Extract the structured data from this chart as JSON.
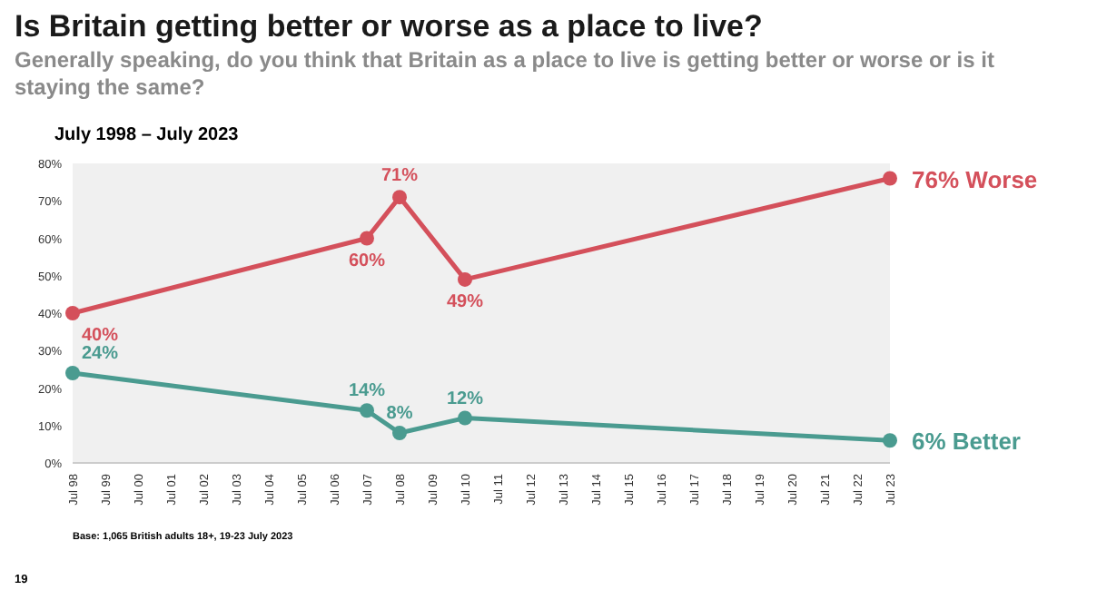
{
  "chart_data": {
    "type": "line",
    "title": "Is Britain getting better or worse as a place to live?",
    "subtitle": "Generally speaking, do you think that Britain as a place to live is getting better or worse or is it staying the same?",
    "categories": [
      "Jul 98",
      "Jul 99",
      "Jul 00",
      "Jul 01",
      "Jul 02",
      "Jul 03",
      "Jul 04",
      "Jul 05",
      "Jul 06",
      "Jul 07",
      "Jul 08",
      "Jul 09",
      "Jul 10",
      "Jul 11",
      "Jul 12",
      "Jul 13",
      "Jul 14",
      "Jul 15",
      "Jul 16",
      "Jul 17",
      "Jul 18",
      "Jul 19",
      "Jul 20",
      "Jul 21",
      "Jul 22",
      "Jul 23"
    ],
    "series": [
      {
        "name": "Worse",
        "color": "#d4505b",
        "values": [
          40,
          null,
          null,
          null,
          null,
          null,
          null,
          null,
          null,
          60,
          71,
          null,
          49,
          null,
          null,
          null,
          null,
          null,
          null,
          null,
          null,
          null,
          null,
          null,
          null,
          76
        ],
        "value_labels": [
          "40%",
          null,
          null,
          null,
          null,
          null,
          null,
          null,
          null,
          "60%",
          "71%",
          null,
          "49%",
          null,
          null,
          null,
          null,
          null,
          null,
          null,
          null,
          null,
          null,
          null,
          null,
          "76%"
        ]
      },
      {
        "name": "Better",
        "color": "#4a9b90",
        "values": [
          24,
          null,
          null,
          null,
          null,
          null,
          null,
          null,
          null,
          14,
          8,
          null,
          12,
          null,
          null,
          null,
          null,
          null,
          null,
          null,
          null,
          null,
          null,
          null,
          null,
          6
        ],
        "value_labels": [
          "24%",
          null,
          null,
          null,
          null,
          null,
          null,
          null,
          null,
          "14%",
          "8%",
          null,
          "12%",
          null,
          null,
          null,
          null,
          null,
          null,
          null,
          null,
          null,
          null,
          null,
          null,
          "6%"
        ]
      }
    ],
    "ylim": [
      0,
      80
    ],
    "yticks": [
      {
        "value": 0,
        "label": "0%"
      },
      {
        "value": 10,
        "label": "10%"
      },
      {
        "value": 20,
        "label": "20%"
      },
      {
        "value": 30,
        "label": "30%"
      },
      {
        "value": 40,
        "label": "40%"
      },
      {
        "value": 50,
        "label": "50%"
      },
      {
        "value": 60,
        "label": "60%"
      },
      {
        "value": 70,
        "label": "70%"
      },
      {
        "value": 80,
        "label": "80%"
      }
    ],
    "grid": false,
    "marker": "circle",
    "line_style": "solid",
    "annotations": [
      "July 1998 – July 2023",
      "Base: 1,065 British adults 18+, 19-23 July 2023",
      "19"
    ]
  }
}
